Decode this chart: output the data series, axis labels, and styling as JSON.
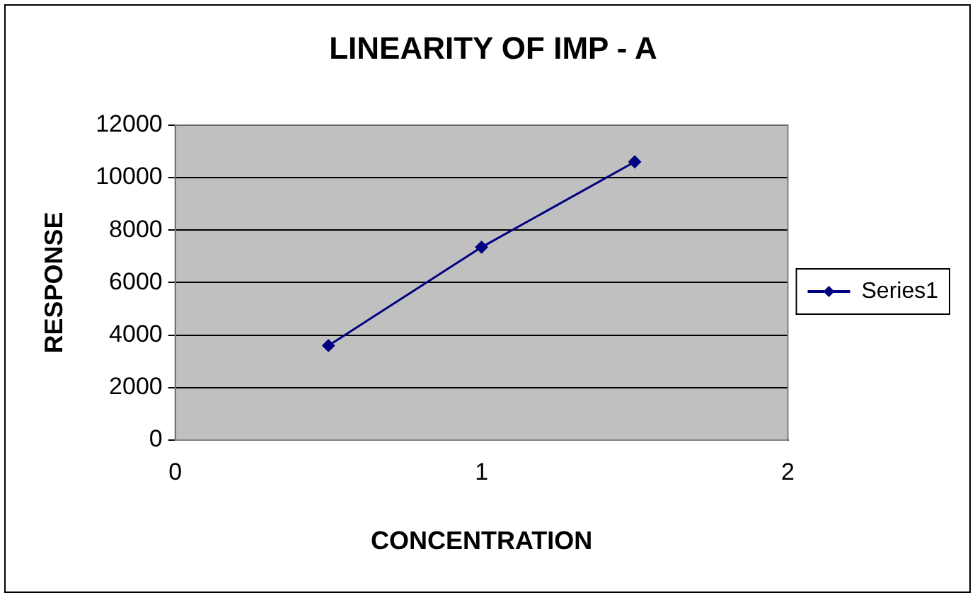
{
  "chart_data": {
    "type": "line",
    "title": "LINEARITY OF IMP - A",
    "xlabel": "CONCENTRATION",
    "ylabel": "RESPONSE",
    "x": [
      0.5,
      1,
      1.5
    ],
    "series": [
      {
        "name": "Series1",
        "color": "#000080",
        "values": [
          3600,
          7350,
          10600
        ]
      }
    ],
    "xlim": [
      0,
      2
    ],
    "xticks": [
      0,
      1,
      2
    ],
    "ylim": [
      0,
      12000
    ],
    "yticks": [
      0,
      2000,
      4000,
      6000,
      8000,
      10000,
      12000
    ],
    "grid": "y",
    "legend": "right",
    "marker": "diamond",
    "line_style": "solid"
  }
}
